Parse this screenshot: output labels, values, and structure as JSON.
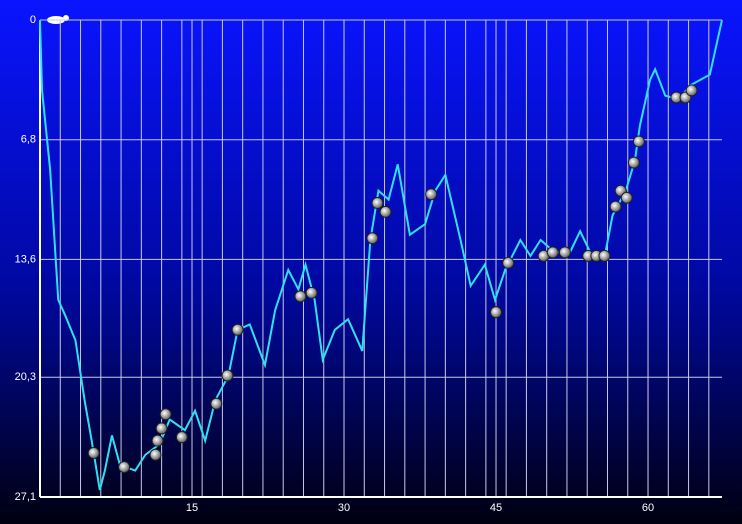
{
  "chart_data": {
    "type": "line",
    "x": [
      0,
      0.2,
      1.0,
      1.8,
      2.5,
      3.5,
      4.4,
      5.1,
      5.9,
      6.4,
      7.1,
      7.9,
      9.4,
      10.4,
      11.8,
      12.8,
      14.3,
      15.3,
      16.3,
      17.3,
      18.6,
      19.5,
      20.7,
      22.2,
      23.2,
      24.5,
      25.5,
      26.2,
      27.1,
      27.9,
      29.1,
      30.4,
      31.8,
      32.6,
      33.4,
      34.4,
      35.3,
      36.5,
      38.0,
      39.0,
      40.0,
      41.5,
      42.5,
      43.9,
      44.9,
      45.9,
      47.4,
      48.4,
      49.4,
      50.8,
      52.3,
      53.3,
      54.3,
      55.8,
      56.5,
      57.8,
      58.7,
      59.2,
      60.2,
      60.7,
      61.7,
      63.0,
      64.2,
      66.1,
      67.3
    ],
    "series": [
      {
        "color": "#30e0f0",
        "values": [
          0,
          4.0,
          8.5,
          15.9,
          16.8,
          18.2,
          21.6,
          23.9,
          26.7,
          25.6,
          23.6,
          25.3,
          25.6,
          24.7,
          24.1,
          22.7,
          23.3,
          22.2,
          23.9,
          21.6,
          20.2,
          17.6,
          17.3,
          19.6,
          16.5,
          14.2,
          15.3,
          13.9,
          15.9,
          19.3,
          17.6,
          17.0,
          18.8,
          12.5,
          9.7,
          10.2,
          8.2,
          12.2,
          11.6,
          9.7,
          8.8,
          12.5,
          15.1,
          13.9,
          15.9,
          14.2,
          12.5,
          13.4,
          12.5,
          13.2,
          13.2,
          12.0,
          13.2,
          13.2,
          11.1,
          9.7,
          8.0,
          6.0,
          3.4,
          2.8,
          4.3,
          4.5,
          3.7,
          3.1,
          0
        ]
      }
    ],
    "markers": {
      "x": [
        5.3,
        8.3,
        11.4,
        11.6,
        12.0,
        12.4,
        14.0,
        17.4,
        18.5,
        19.5,
        25.7,
        26.8,
        32.8,
        33.3,
        34.1,
        38.6,
        45.0,
        46.2,
        49.7,
        50.6,
        51.8,
        54.1,
        54.9,
        55.7,
        56.8,
        57.3,
        57.9,
        58.6,
        59.1,
        62.8,
        63.7,
        64.3
      ],
      "values": [
        24.6,
        25.4,
        24.7,
        23.9,
        23.2,
        22.4,
        23.7,
        21.8,
        20.2,
        17.6,
        15.7,
        15.5,
        12.4,
        10.4,
        10.9,
        9.9,
        16.6,
        13.8,
        13.4,
        13.2,
        13.2,
        13.4,
        13.4,
        13.4,
        10.6,
        9.7,
        10.1,
        8.1,
        6.9,
        4.4,
        4.4,
        4.0
      ]
    },
    "xlim": [
      0,
      67.3
    ],
    "xticks": [
      15,
      30,
      45,
      60
    ],
    "xgrid": [
      2,
      4,
      6,
      8,
      10,
      12,
      14,
      16,
      18,
      20,
      22,
      24,
      26,
      28,
      30,
      32,
      34,
      36,
      38,
      40,
      42,
      44,
      46,
      48,
      50,
      52,
      54,
      56,
      58,
      60,
      62,
      64,
      66
    ],
    "ylim": [
      0,
      27.1
    ],
    "y_inverted": true,
    "yticks": [
      0,
      {
        "value": 6.8,
        "label": "6,8"
      },
      {
        "value": 13.6,
        "label": "13,6"
      },
      {
        "value": 20.3,
        "label": "20,3"
      },
      {
        "value": 27.1,
        "label": "27,1"
      }
    ],
    "grid": true
  }
}
